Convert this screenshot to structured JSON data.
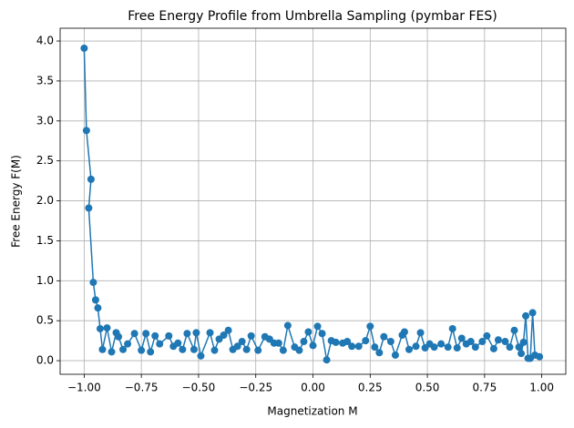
{
  "chart_data": {
    "type": "line",
    "title": "Free Energy Profile from Umbrella Sampling (pymbar FES)",
    "xlabel": "Magnetization M",
    "ylabel": "Free Energy F(M)",
    "grid": true,
    "xlim": [
      -1.105,
      1.105
    ],
    "ylim": [
      -0.17,
      4.16
    ],
    "xticks": [
      {
        "value": -1,
        "label": "−1.00"
      },
      {
        "value": -0.75,
        "label": "−0.75"
      },
      {
        "value": -0.5,
        "label": "−0.50"
      },
      {
        "value": -0.25,
        "label": "−0.25"
      },
      {
        "value": 0,
        "label": "0.00"
      },
      {
        "value": 0.25,
        "label": "0.25"
      },
      {
        "value": 0.5,
        "label": "0.50"
      },
      {
        "value": 0.75,
        "label": "0.75"
      },
      {
        "value": 1,
        "label": "1.00"
      }
    ],
    "yticks": [
      {
        "value": 0,
        "label": "0.0"
      },
      {
        "value": 0.5,
        "label": "0.5"
      },
      {
        "value": 1,
        "label": "1.0"
      },
      {
        "value": 1.5,
        "label": "1.5"
      },
      {
        "value": 2,
        "label": "2.0"
      },
      {
        "value": 2.5,
        "label": "2.5"
      },
      {
        "value": 3,
        "label": "3.0"
      },
      {
        "value": 3.5,
        "label": "3.5"
      },
      {
        "value": 4,
        "label": "4.0"
      }
    ],
    "series": [
      {
        "color": "#1f77b4",
        "x": [
          -1.0,
          -0.99,
          -0.97,
          -0.98,
          -0.96,
          -0.95,
          -0.94,
          -0.93,
          -0.92,
          -0.9,
          -0.88,
          -0.86,
          -0.85,
          -0.83,
          -0.81,
          -0.78,
          -0.75,
          -0.73,
          -0.71,
          -0.69,
          -0.67,
          -0.63,
          -0.61,
          -0.59,
          -0.57,
          -0.55,
          -0.52,
          -0.51,
          -0.49,
          -0.45,
          -0.43,
          -0.41,
          -0.39,
          -0.37,
          -0.35,
          -0.33,
          -0.31,
          -0.29,
          -0.27,
          -0.24,
          -0.21,
          -0.19,
          -0.17,
          -0.15,
          -0.13,
          -0.11,
          -0.08,
          -0.06,
          -0.04,
          -0.02,
          0.0,
          0.02,
          0.04,
          0.06,
          0.08,
          0.1,
          0.13,
          0.15,
          0.17,
          0.2,
          0.23,
          0.25,
          0.27,
          0.29,
          0.31,
          0.34,
          0.36,
          0.39,
          0.4,
          0.42,
          0.45,
          0.47,
          0.49,
          0.51,
          0.53,
          0.56,
          0.59,
          0.61,
          0.63,
          0.65,
          0.67,
          0.69,
          0.71,
          0.74,
          0.76,
          0.79,
          0.81,
          0.84,
          0.86,
          0.88,
          0.9,
          0.91,
          0.92,
          0.93,
          0.94,
          0.95,
          0.96,
          0.97,
          0.99
        ],
        "values": [
          3.91,
          2.88,
          2.27,
          1.91,
          0.98,
          0.76,
          0.66,
          0.4,
          0.14,
          0.41,
          0.11,
          0.35,
          0.3,
          0.14,
          0.21,
          0.34,
          0.13,
          0.34,
          0.11,
          0.31,
          0.21,
          0.31,
          0.18,
          0.22,
          0.14,
          0.34,
          0.14,
          0.35,
          0.06,
          0.35,
          0.13,
          0.27,
          0.32,
          0.38,
          0.14,
          0.18,
          0.24,
          0.14,
          0.31,
          0.13,
          0.3,
          0.27,
          0.22,
          0.22,
          0.13,
          0.44,
          0.17,
          0.13,
          0.24,
          0.36,
          0.19,
          0.43,
          0.34,
          0.01,
          0.25,
          0.23,
          0.22,
          0.24,
          0.18,
          0.18,
          0.25,
          0.43,
          0.17,
          0.1,
          0.3,
          0.24,
          0.07,
          0.32,
          0.36,
          0.14,
          0.18,
          0.35,
          0.16,
          0.21,
          0.17,
          0.21,
          0.17,
          0.4,
          0.16,
          0.28,
          0.21,
          0.24,
          0.17,
          0.24,
          0.31,
          0.15,
          0.26,
          0.24,
          0.17,
          0.38,
          0.17,
          0.09,
          0.23,
          0.56,
          0.03,
          0.03,
          0.6,
          0.07,
          0.05
        ]
      }
    ]
  }
}
